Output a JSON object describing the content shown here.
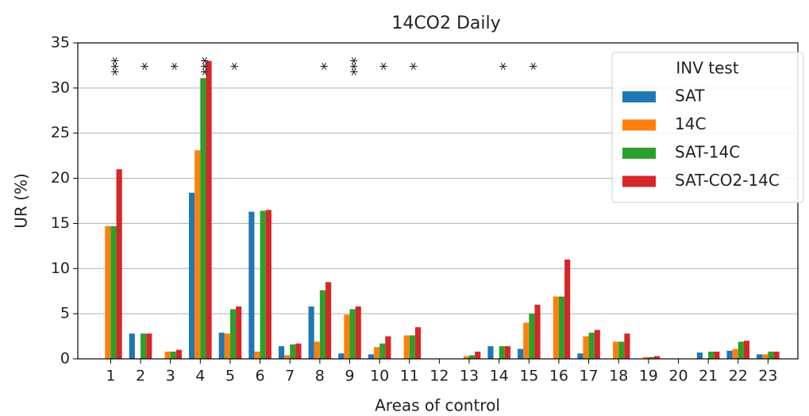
{
  "chart_data": {
    "type": "bar",
    "title": "14CO2 Daily",
    "x_label": "Areas of control",
    "y_label": "UR (%)",
    "categories": [
      "1",
      "2",
      "3",
      "4",
      "5",
      "6",
      "7",
      "8",
      "9",
      "10",
      "11",
      "12",
      "13",
      "14",
      "15",
      "16",
      "17",
      "18",
      "19",
      "20",
      "21",
      "22",
      "23"
    ],
    "series": [
      {
        "name": "SAT",
        "color": "#1f77b4",
        "values": [
          0,
          2.8,
          0,
          18.4,
          2.9,
          16.3,
          1.4,
          5.8,
          0.6,
          0.5,
          0,
          0,
          0,
          1.4,
          1.1,
          0,
          0.6,
          0,
          0,
          0,
          0.7,
          0.9,
          0.5
        ]
      },
      {
        "name": "14C",
        "color": "#ff7f0e",
        "values": [
          14.7,
          0,
          0.8,
          23.1,
          2.8,
          0.8,
          0.4,
          1.9,
          4.9,
          1.3,
          2.6,
          0,
          0.3,
          0,
          4.0,
          6.9,
          2.5,
          1.9,
          0.2,
          0,
          0,
          1.1,
          0.5
        ]
      },
      {
        "name": "SAT-14C",
        "color": "#2ca02c",
        "values": [
          14.7,
          2.8,
          0.8,
          31.1,
          5.5,
          16.4,
          1.6,
          7.6,
          5.5,
          1.7,
          2.6,
          0,
          0.4,
          1.4,
          5.0,
          6.9,
          2.9,
          1.9,
          0.2,
          0,
          0.8,
          1.9,
          0.8
        ]
      },
      {
        "name": "SAT-CO2-14C",
        "color": "#d62728",
        "values": [
          21,
          2.8,
          1.0,
          33,
          5.8,
          16.5,
          1.7,
          8.5,
          5.8,
          2.5,
          3.5,
          0,
          0.8,
          1.4,
          6.0,
          11.0,
          3.2,
          2.8,
          0.3,
          0,
          0.8,
          2.0,
          0.8
        ]
      }
    ],
    "significance": [
      "***",
      "*",
      "*",
      "***",
      "*",
      null,
      null,
      "*",
      "***",
      "*",
      "*",
      null,
      null,
      "*",
      "*",
      null,
      null,
      null,
      null,
      null,
      null,
      null,
      null
    ],
    "legend_title": "INV test",
    "legend": "upper right",
    "ylim": [
      0,
      35
    ],
    "yticks": [
      0,
      5,
      10,
      15,
      20,
      25,
      30,
      35
    ],
    "grid": true
  }
}
